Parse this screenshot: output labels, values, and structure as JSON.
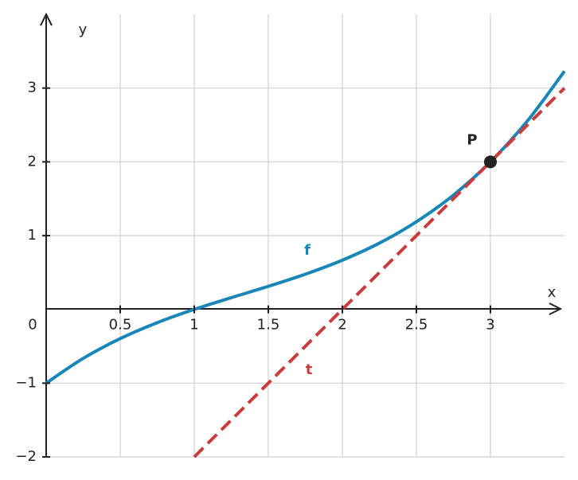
{
  "chart_data": {
    "type": "line",
    "x_label": "x",
    "y_label": "y",
    "xlim": [
      0,
      3.5
    ],
    "ylim": [
      -2,
      4
    ],
    "xticks": [
      0,
      0.5,
      1,
      1.5,
      2,
      2.5,
      3
    ],
    "yticks": [
      {
        "value": -2,
        "label": "−2"
      },
      {
        "value": -1,
        "label": "−1"
      },
      1,
      2,
      3
    ],
    "grid": true,
    "series": [
      {
        "name": "f",
        "color": "#1a86b8",
        "style": "solid",
        "x": [
          0,
          0.25,
          0.5,
          0.75,
          1,
          1.25,
          1.5,
          1.75,
          2,
          2.25,
          2.5,
          2.75,
          3,
          3.25,
          3.5
        ],
        "values": [
          -1,
          -0.664,
          -0.396,
          -0.18,
          0,
          0.159,
          0.3125,
          0.477,
          0.667,
          0.898,
          1.188,
          1.549,
          2,
          2.555,
          3.229
        ]
      },
      {
        "name": "t",
        "color": "#cc3b3b",
        "style": "dashed",
        "x": [
          1,
          3.5
        ],
        "values": [
          -2,
          3
        ]
      }
    ],
    "points": [
      {
        "label": "P",
        "x": 3,
        "y": 2,
        "color": "#222222"
      }
    ]
  }
}
